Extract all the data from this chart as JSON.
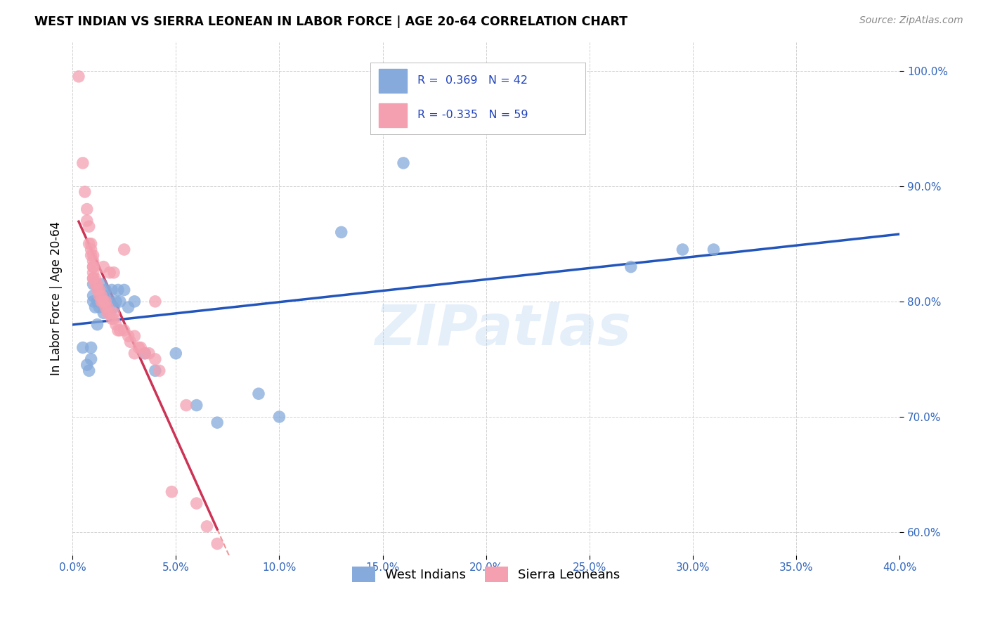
{
  "title": "WEST INDIAN VS SIERRA LEONEAN IN LABOR FORCE | AGE 20-64 CORRELATION CHART",
  "source": "Source: ZipAtlas.com",
  "ylabel": "In Labor Force | Age 20-64",
  "watermark": "ZIPatlas",
  "xlim": [
    0.0,
    0.4
  ],
  "ylim": [
    0.58,
    1.025
  ],
  "xticks": [
    0.0,
    0.05,
    0.1,
    0.15,
    0.2,
    0.25,
    0.3,
    0.35,
    0.4
  ],
  "yticks": [
    0.6,
    0.7,
    0.8,
    0.9,
    1.0
  ],
  "ytick_labels": [
    "60.0%",
    "70.0%",
    "80.0%",
    "90.0%",
    "100.0%"
  ],
  "xtick_labels": [
    "0.0%",
    "5.0%",
    "10.0%",
    "15.0%",
    "20.0%",
    "25.0%",
    "30.0%",
    "35.0%",
    "40.0%"
  ],
  "blue_color": "#85AADB",
  "pink_color": "#F4A0B0",
  "blue_line_color": "#2255BB",
  "pink_line_color": "#CC3355",
  "dashed_line_color": "#EE9999",
  "legend_R_blue": "0.369",
  "legend_N_blue": "42",
  "legend_R_pink": "-0.335",
  "legend_N_pink": "59",
  "legend_label_blue": "West Indians",
  "legend_label_pink": "Sierra Leoneans",
  "blue_x": [
    0.005,
    0.007,
    0.008,
    0.009,
    0.009,
    0.01,
    0.01,
    0.01,
    0.011,
    0.012,
    0.012,
    0.013,
    0.013,
    0.014,
    0.014,
    0.015,
    0.015,
    0.016,
    0.016,
    0.017,
    0.018,
    0.018,
    0.019,
    0.02,
    0.021,
    0.022,
    0.023,
    0.025,
    0.027,
    0.03,
    0.035,
    0.04,
    0.05,
    0.06,
    0.07,
    0.09,
    0.1,
    0.13,
    0.16,
    0.27,
    0.295,
    0.31
  ],
  "blue_y": [
    0.76,
    0.745,
    0.74,
    0.75,
    0.76,
    0.8,
    0.805,
    0.815,
    0.795,
    0.78,
    0.8,
    0.795,
    0.81,
    0.8,
    0.815,
    0.79,
    0.805,
    0.8,
    0.81,
    0.8,
    0.79,
    0.8,
    0.81,
    0.795,
    0.8,
    0.81,
    0.8,
    0.81,
    0.795,
    0.8,
    0.755,
    0.74,
    0.755,
    0.71,
    0.695,
    0.72,
    0.7,
    0.86,
    0.92,
    0.83,
    0.845,
    0.845
  ],
  "pink_x": [
    0.003,
    0.005,
    0.006,
    0.007,
    0.007,
    0.008,
    0.008,
    0.009,
    0.009,
    0.009,
    0.01,
    0.01,
    0.01,
    0.01,
    0.01,
    0.01,
    0.01,
    0.011,
    0.011,
    0.012,
    0.012,
    0.013,
    0.013,
    0.014,
    0.014,
    0.015,
    0.015,
    0.015,
    0.016,
    0.016,
    0.017,
    0.017,
    0.018,
    0.018,
    0.019,
    0.02,
    0.02,
    0.02,
    0.021,
    0.022,
    0.023,
    0.025,
    0.025,
    0.027,
    0.028,
    0.03,
    0.03,
    0.032,
    0.033,
    0.035,
    0.037,
    0.04,
    0.04,
    0.042,
    0.048,
    0.055,
    0.06,
    0.065,
    0.07
  ],
  "pink_y": [
    0.995,
    0.92,
    0.895,
    0.88,
    0.87,
    0.865,
    0.85,
    0.85,
    0.845,
    0.84,
    0.84,
    0.835,
    0.83,
    0.83,
    0.825,
    0.82,
    0.82,
    0.82,
    0.815,
    0.815,
    0.81,
    0.81,
    0.805,
    0.805,
    0.8,
    0.8,
    0.8,
    0.83,
    0.8,
    0.795,
    0.795,
    0.79,
    0.79,
    0.825,
    0.785,
    0.785,
    0.825,
    0.79,
    0.78,
    0.775,
    0.775,
    0.845,
    0.775,
    0.77,
    0.765,
    0.755,
    0.77,
    0.76,
    0.76,
    0.755,
    0.755,
    0.75,
    0.8,
    0.74,
    0.635,
    0.71,
    0.625,
    0.605,
    0.59
  ]
}
